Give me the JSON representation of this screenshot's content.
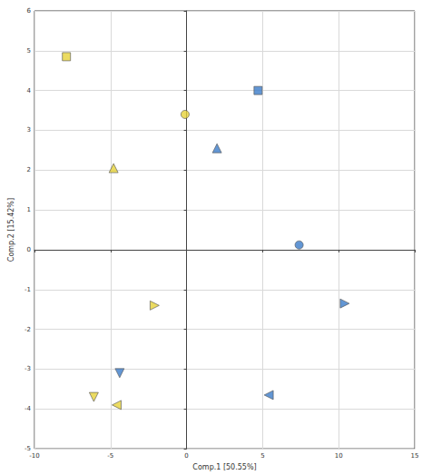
{
  "chart_data": {
    "type": "scatter",
    "x_label": "Comp.1 [50.55%]",
    "y_label": "Comp.2 [15.42%]",
    "xlim": [
      -10,
      15
    ],
    "xticks": [
      -10,
      -5,
      0,
      5,
      10,
      15
    ],
    "ylim": [
      -5,
      6
    ],
    "yticks": [
      -5,
      -4,
      -3,
      -2,
      -1,
      0,
      1,
      2,
      3,
      4,
      5,
      6
    ],
    "grid": true,
    "series": [
      {
        "color": "#e6d23a",
        "marker": "square",
        "x": [
          -7.9
        ],
        "values": [
          4.85
        ]
      },
      {
        "color": "#e6d23a",
        "marker": "circle",
        "x": [
          -0.1
        ],
        "values": [
          3.4
        ]
      },
      {
        "color": "#e6d23a",
        "marker": "triangle-up",
        "x": [
          -4.8
        ],
        "values": [
          2.05
        ]
      },
      {
        "color": "#e6d23a",
        "marker": "triangle-right",
        "x": [
          -2.1
        ],
        "values": [
          -1.4
        ]
      },
      {
        "color": "#e6d23a",
        "marker": "triangle-down",
        "x": [
          -6.1
        ],
        "values": [
          -3.7
        ]
      },
      {
        "color": "#e6d23a",
        "marker": "triangle-left",
        "x": [
          -4.6
        ],
        "values": [
          -3.9
        ]
      },
      {
        "color": "#3b7cc9",
        "marker": "square",
        "x": [
          4.7
        ],
        "values": [
          4.0
        ]
      },
      {
        "color": "#3b7cc9",
        "marker": "triangle-up",
        "x": [
          2.0
        ],
        "values": [
          2.55
        ]
      },
      {
        "color": "#3b7cc9",
        "marker": "circle",
        "x": [
          7.4
        ],
        "values": [
          0.12
        ]
      },
      {
        "color": "#3b7cc9",
        "marker": "triangle-right",
        "x": [
          10.4
        ],
        "values": [
          -1.35
        ]
      },
      {
        "color": "#3b7cc9",
        "marker": "triangle-down",
        "x": [
          -4.4
        ],
        "values": [
          -3.1
        ]
      },
      {
        "color": "#3b7cc9",
        "marker": "triangle-left",
        "x": [
          5.4
        ],
        "values": [
          -3.65
        ]
      }
    ]
  }
}
